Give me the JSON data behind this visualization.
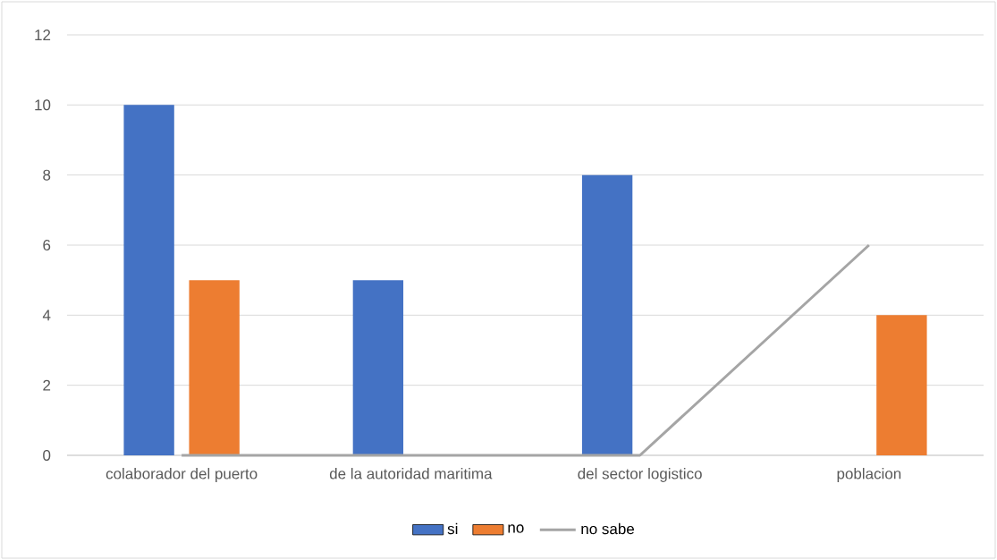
{
  "chart_data": {
    "type": "bar",
    "categories": [
      "colaborador del puerto",
      "de la autoridad maritima",
      "del sector logistico",
      "poblacion"
    ],
    "series": [
      {
        "name": "si",
        "color": "#4472c4",
        "values": [
          10,
          5,
          8,
          0
        ]
      },
      {
        "name": "no",
        "color": "#ed7d31",
        "values": [
          5,
          0,
          0,
          4
        ]
      },
      {
        "name": "no sabe",
        "color": "#a5a5a5",
        "type": "line",
        "values": [
          0,
          0,
          0,
          6
        ]
      }
    ],
    "ylim": [
      0,
      12
    ],
    "yticks": [
      0,
      2,
      4,
      6,
      8,
      10,
      12
    ],
    "grid": "y",
    "legend": "bottom"
  }
}
